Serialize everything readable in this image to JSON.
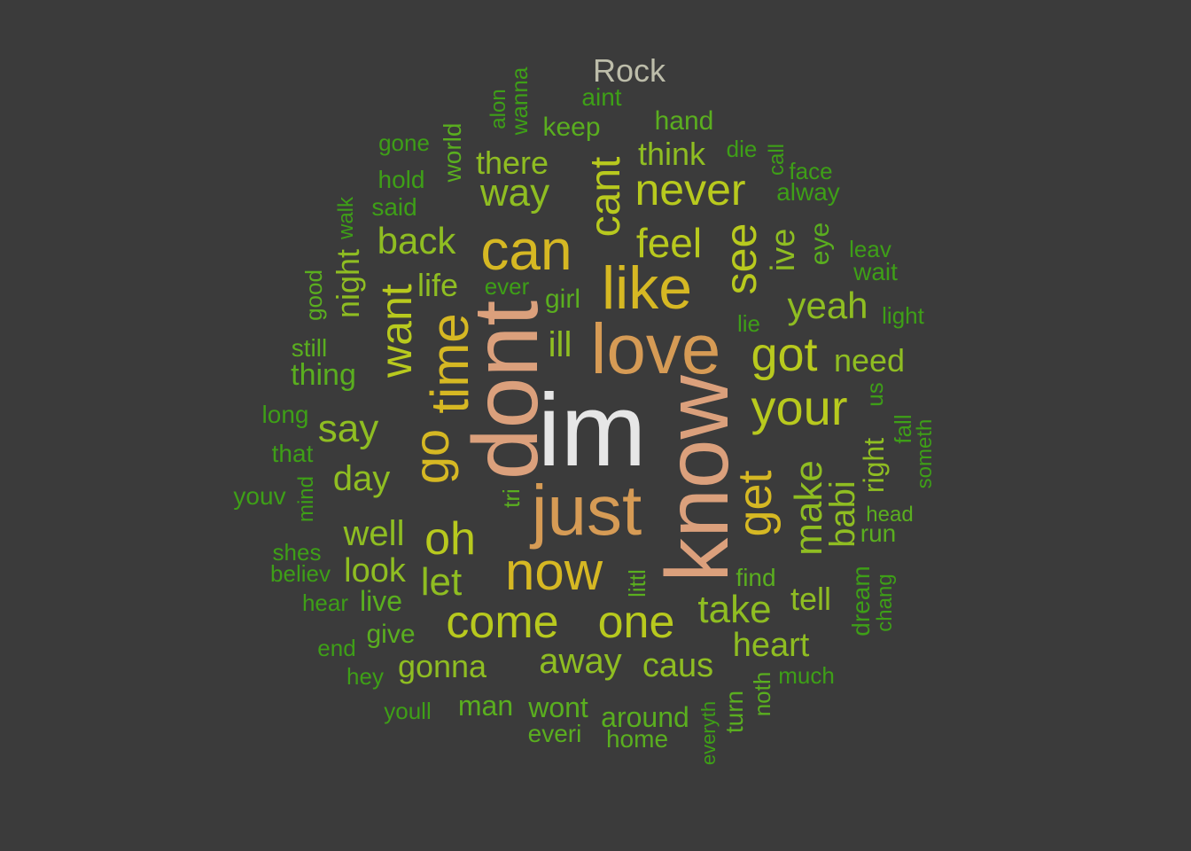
{
  "title": "Rock",
  "colors": {
    "background": "#3b3b3b",
    "title": "#bdbdaa",
    "tier1": "#e6e6e6",
    "tier2": "#dba07c",
    "tier3": "#d69b55",
    "tier4": "#d6b823",
    "tier5": "#b8c91e",
    "tier6": "#8fbd22",
    "tier7": "#5aae1f",
    "tier8": "#3e9f17"
  },
  "words": [
    {
      "text": "im",
      "tier": "tier1"
    },
    {
      "text": "dont",
      "tier": "tier2"
    },
    {
      "text": "know",
      "tier": "tier2"
    },
    {
      "text": "love",
      "tier": "tier3"
    },
    {
      "text": "just",
      "tier": "tier3"
    },
    {
      "text": "like",
      "tier": "tier4"
    },
    {
      "text": "can",
      "tier": "tier4"
    },
    {
      "text": "now",
      "tier": "tier4"
    },
    {
      "text": "time",
      "tier": "tier4"
    },
    {
      "text": "go",
      "tier": "tier4"
    },
    {
      "text": "get",
      "tier": "tier4"
    },
    {
      "text": "got",
      "tier": "tier5"
    },
    {
      "text": "your",
      "tier": "tier5"
    },
    {
      "text": "see",
      "tier": "tier5"
    },
    {
      "text": "oh",
      "tier": "tier5"
    },
    {
      "text": "come",
      "tier": "tier5"
    },
    {
      "text": "one",
      "tier": "tier5"
    },
    {
      "text": "want",
      "tier": "tier5"
    },
    {
      "text": "never",
      "tier": "tier5"
    },
    {
      "text": "cant",
      "tier": "tier5"
    },
    {
      "text": "feel",
      "tier": "tier5"
    },
    {
      "text": "make",
      "tier": "tier6"
    },
    {
      "text": "way",
      "tier": "tier6"
    },
    {
      "text": "say",
      "tier": "tier6"
    },
    {
      "text": "take",
      "tier": "tier6"
    },
    {
      "text": "away",
      "tier": "tier6"
    },
    {
      "text": "let",
      "tier": "tier6"
    },
    {
      "text": "yeah",
      "tier": "tier6"
    },
    {
      "text": "back",
      "tier": "tier6"
    },
    {
      "text": "babi",
      "tier": "tier6"
    },
    {
      "text": "well",
      "tier": "tier6"
    },
    {
      "text": "day",
      "tier": "tier6"
    },
    {
      "text": "ill",
      "tier": "tier6"
    },
    {
      "text": "night",
      "tier": "tier6"
    },
    {
      "text": "ive",
      "tier": "tier6"
    },
    {
      "text": "look",
      "tier": "tier6"
    },
    {
      "text": "caus",
      "tier": "tier6"
    },
    {
      "text": "heart",
      "tier": "tier6"
    },
    {
      "text": "gonna",
      "tier": "tier6"
    },
    {
      "text": "tell",
      "tier": "tier6"
    },
    {
      "text": "right",
      "tier": "tier6"
    },
    {
      "text": "need",
      "tier": "tier6"
    },
    {
      "text": "think",
      "tier": "tier6"
    },
    {
      "text": "there",
      "tier": "tier6"
    },
    {
      "text": "life",
      "tier": "tier6"
    },
    {
      "text": "thing",
      "tier": "tier7"
    },
    {
      "text": "live",
      "tier": "tier7"
    },
    {
      "text": "wont",
      "tier": "tier7"
    },
    {
      "text": "man",
      "tier": "tier7"
    },
    {
      "text": "around",
      "tier": "tier7"
    },
    {
      "text": "eye",
      "tier": "tier7"
    },
    {
      "text": "give",
      "tier": "tier7"
    },
    {
      "text": "keep",
      "tier": "tier7"
    },
    {
      "text": "hand",
      "tier": "tier7"
    },
    {
      "text": "world",
      "tier": "tier7"
    },
    {
      "text": "girl",
      "tier": "tier7"
    },
    {
      "text": "find",
      "tier": "tier7"
    },
    {
      "text": "run",
      "tier": "tier7"
    },
    {
      "text": "head",
      "tier": "tier7"
    },
    {
      "text": "everi",
      "tier": "tier7"
    },
    {
      "text": "home",
      "tier": "tier7"
    },
    {
      "text": "turn",
      "tier": "tier7"
    },
    {
      "text": "noth",
      "tier": "tier7"
    },
    {
      "text": "tri",
      "tier": "tier7"
    },
    {
      "text": "littl",
      "tier": "tier7"
    },
    {
      "text": "still",
      "tier": "tier7"
    },
    {
      "text": "good",
      "tier": "tier7"
    },
    {
      "text": "long",
      "tier": "tier8"
    },
    {
      "text": "that",
      "tier": "tier8"
    },
    {
      "text": "mind",
      "tier": "tier8"
    },
    {
      "text": "youv",
      "tier": "tier8"
    },
    {
      "text": "shes",
      "tier": "tier8"
    },
    {
      "text": "believ",
      "tier": "tier8"
    },
    {
      "text": "hear",
      "tier": "tier8"
    },
    {
      "text": "end",
      "tier": "tier8"
    },
    {
      "text": "hey",
      "tier": "tier8"
    },
    {
      "text": "youll",
      "tier": "tier8"
    },
    {
      "text": "said",
      "tier": "tier8"
    },
    {
      "text": "hold",
      "tier": "tier8"
    },
    {
      "text": "gone",
      "tier": "tier8"
    },
    {
      "text": "walk",
      "tier": "tier8"
    },
    {
      "text": "alon",
      "tier": "tier8"
    },
    {
      "text": "wanna",
      "tier": "tier8"
    },
    {
      "text": "aint",
      "tier": "tier8"
    },
    {
      "text": "die",
      "tier": "tier8"
    },
    {
      "text": "call",
      "tier": "tier8"
    },
    {
      "text": "face",
      "tier": "tier8"
    },
    {
      "text": "alway",
      "tier": "tier8"
    },
    {
      "text": "leav",
      "tier": "tier8"
    },
    {
      "text": "wait",
      "tier": "tier8"
    },
    {
      "text": "light",
      "tier": "tier8"
    },
    {
      "text": "lie",
      "tier": "tier8"
    },
    {
      "text": "ever",
      "tier": "tier8"
    },
    {
      "text": "us",
      "tier": "tier8"
    },
    {
      "text": "fall",
      "tier": "tier8"
    },
    {
      "text": "someth",
      "tier": "tier8"
    },
    {
      "text": "dream",
      "tier": "tier8"
    },
    {
      "text": "chang",
      "tier": "tier8"
    },
    {
      "text": "much",
      "tier": "tier8"
    },
    {
      "text": "everyth",
      "tier": "tier8"
    }
  ]
}
